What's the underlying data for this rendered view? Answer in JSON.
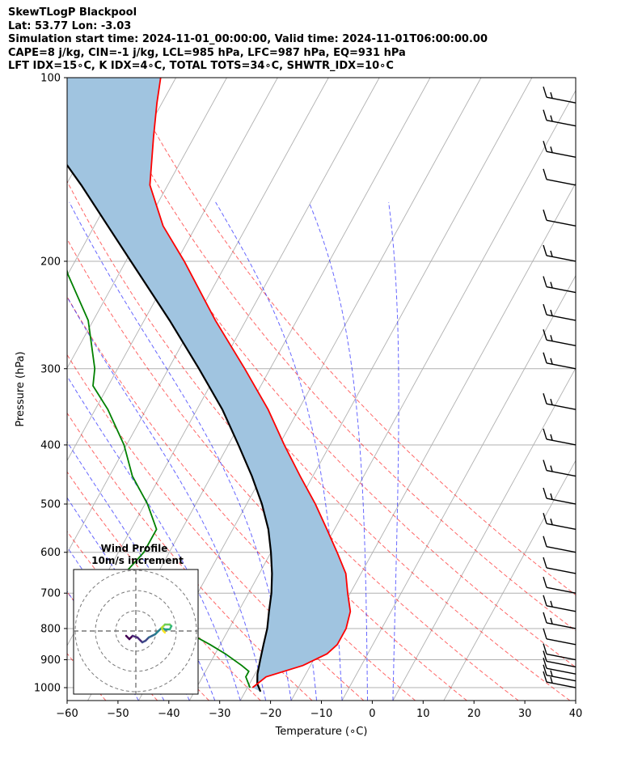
{
  "header": {
    "line1": "SkewTLogP Blackpool",
    "line2": "Lat: 53.77   Lon: -3.03",
    "line3": "Simulation start time: 2024-11-01_00:00:00, Valid time: 2024-11-01T06:00:00.00",
    "line4": "CAPE=8 j/kg, CIN=-1 j/kg, LCL=985 hPa, LFC=987 hPa, EQ=931 hPa",
    "line5": "LFT IDX=15∘C, K IDX=4∘C, TOTAL TOTS=34∘C, SHWTR_IDX=10∘C"
  },
  "chart_data": {
    "type": "line",
    "diagram": "skew-T log-P",
    "xlabel": "Temperature (∘C)",
    "ylabel": "Pressure (hPa)",
    "xlim": [
      -60,
      40
    ],
    "ylim_pressure": [
      1050,
      100
    ],
    "log_pressure_axis": true,
    "x_ticks": [
      -60,
      -50,
      -40,
      -30,
      -20,
      -10,
      0,
      10,
      20,
      30,
      40
    ],
    "y_ticks": [
      100,
      200,
      300,
      400,
      500,
      600,
      700,
      800,
      900,
      1000
    ],
    "grid": true,
    "series": [
      {
        "role": "temperature",
        "color": "#ff0000",
        "points": [
          [
            1000,
            11.0
          ],
          [
            960,
            12.5
          ],
          [
            920,
            18.5
          ],
          [
            880,
            22.0
          ],
          [
            850,
            23.0
          ],
          [
            800,
            23.0
          ],
          [
            750,
            22.0
          ],
          [
            700,
            19.5
          ],
          [
            650,
            17.0
          ],
          [
            600,
            13.0
          ],
          [
            550,
            8.5
          ],
          [
            500,
            3.5
          ],
          [
            450,
            -2.5
          ],
          [
            400,
            -9.0
          ],
          [
            350,
            -16.0
          ],
          [
            300,
            -25.0
          ],
          [
            250,
            -36.0
          ],
          [
            200,
            -48.5
          ],
          [
            175,
            -56.5
          ],
          [
            150,
            -63.5
          ],
          [
            125,
            -68.0
          ],
          [
            110,
            -71.0
          ],
          [
            100,
            -73.0
          ]
        ]
      },
      {
        "role": "dewpoint",
        "color": "#008000",
        "points": [
          [
            1000,
            10.5
          ],
          [
            960,
            8.5
          ],
          [
            940,
            8.5
          ],
          [
            920,
            6.5
          ],
          [
            880,
            2.0
          ],
          [
            850,
            -2.0
          ],
          [
            800,
            -9.5
          ],
          [
            750,
            -16.0
          ],
          [
            700,
            -22.5
          ],
          [
            650,
            -26.5
          ],
          [
            600,
            -25.0
          ],
          [
            550,
            -25.0
          ],
          [
            500,
            -29.5
          ],
          [
            450,
            -35.5
          ],
          [
            400,
            -40.5
          ],
          [
            350,
            -47.5
          ],
          [
            320,
            -53.0
          ],
          [
            300,
            -54.5
          ],
          [
            250,
            -61.0
          ],
          [
            210,
            -70.0
          ],
          [
            200,
            -72.0
          ],
          [
            185,
            -75.5
          ],
          [
            160,
            -82.0
          ],
          [
            140,
            -85.5
          ],
          [
            120,
            -90.0
          ],
          [
            110,
            -93.0
          ],
          [
            100,
            -96.0
          ]
        ]
      },
      {
        "role": "parcel",
        "color": "#000000",
        "points": [
          [
            1015,
            13.0
          ],
          [
            985,
            11.5
          ],
          [
            950,
            10.5
          ],
          [
            900,
            9.5
          ],
          [
            850,
            8.5
          ],
          [
            800,
            7.5
          ],
          [
            750,
            6.0
          ],
          [
            700,
            4.5
          ],
          [
            650,
            2.5
          ],
          [
            600,
            0.0
          ],
          [
            550,
            -3.0
          ],
          [
            500,
            -7.0
          ],
          [
            450,
            -12.0
          ],
          [
            400,
            -18.0
          ],
          [
            350,
            -25.0
          ],
          [
            300,
            -34.0
          ],
          [
            250,
            -45.0
          ],
          [
            200,
            -59.0
          ],
          [
            150,
            -77.0
          ],
          [
            125,
            -89.0
          ],
          [
            100,
            -103.0
          ]
        ]
      }
    ],
    "dry_adiabats_theta_c": [
      -30,
      -20,
      -10,
      0,
      10,
      20,
      30,
      40,
      50,
      60,
      70,
      80,
      90,
      100
    ],
    "moist_adiabat_start_c": [
      -10,
      -5,
      0,
      5,
      10,
      15,
      20,
      25,
      30,
      35,
      40
    ],
    "wind_barbs": [
      {
        "p": 1000,
        "speed": 15
      },
      {
        "p": 975,
        "speed": 15
      },
      {
        "p": 950,
        "speed": 10
      },
      {
        "p": 925,
        "speed": 10
      },
      {
        "p": 900,
        "speed": 10
      },
      {
        "p": 850,
        "speed": 10
      },
      {
        "p": 800,
        "speed": 15
      },
      {
        "p": 750,
        "speed": 15
      },
      {
        "p": 700,
        "speed": 10
      },
      {
        "p": 650,
        "speed": 10
      },
      {
        "p": 600,
        "speed": 10
      },
      {
        "p": 550,
        "speed": 15
      },
      {
        "p": 500,
        "speed": 15
      },
      {
        "p": 450,
        "speed": 15
      },
      {
        "p": 400,
        "speed": 15
      },
      {
        "p": 350,
        "speed": 15
      },
      {
        "p": 300,
        "speed": 15
      },
      {
        "p": 275,
        "speed": 15
      },
      {
        "p": 250,
        "speed": 15
      },
      {
        "p": 225,
        "speed": 15
      },
      {
        "p": 200,
        "speed": 15
      },
      {
        "p": 175,
        "speed": 10
      },
      {
        "p": 150,
        "speed": 10
      },
      {
        "p": 135,
        "speed": 15
      },
      {
        "p": 120,
        "speed": 15
      },
      {
        "p": 110,
        "speed": 15
      }
    ],
    "hodograph": {
      "title_line1": "Wind Profile",
      "title_line2": "10m/s increment",
      "rings": 3,
      "points": [
        [
          -3.0,
          -1.5
        ],
        [
          -2.0,
          -2.5
        ],
        [
          -1.0,
          -1.5
        ],
        [
          0.5,
          -2.0
        ],
        [
          2.0,
          -3.5
        ],
        [
          3.0,
          -3.0
        ],
        [
          4.0,
          -2.0
        ],
        [
          5.0,
          -1.5
        ],
        [
          6.0,
          -1.0
        ],
        [
          7.0,
          0.0
        ],
        [
          8.0,
          1.0
        ],
        [
          9.0,
          0.5
        ],
        [
          10.5,
          0.5
        ],
        [
          11.0,
          1.5
        ],
        [
          10.5,
          2.0
        ],
        [
          9.0,
          2.0
        ],
        [
          8.5,
          1.5
        ],
        [
          8.0,
          1.0
        ],
        [
          8.5,
          0.0
        ],
        [
          9.0,
          -0.5
        ]
      ]
    }
  }
}
